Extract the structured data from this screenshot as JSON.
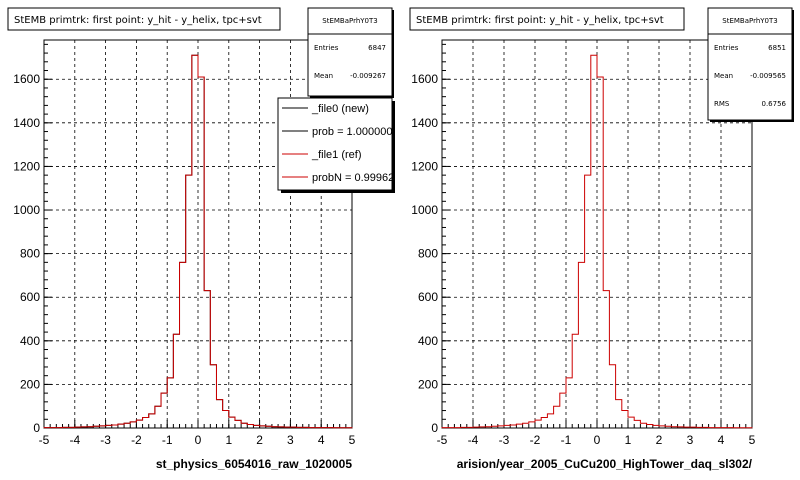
{
  "chart_data": [
    {
      "type": "line",
      "title": "StEMB primtrk: first point: y_hit - y_helix, tpc+svt",
      "xlabel": "st_physics_6054016_raw_1020005",
      "ylabel": "",
      "xlim": [
        -5,
        5
      ],
      "ylim": [
        0,
        1780
      ],
      "x_ticks": [
        "-5",
        "-4",
        "-3",
        "-2",
        "-1",
        "0",
        "1",
        "2",
        "3",
        "4",
        "5"
      ],
      "y_ticks": [
        "0",
        "200",
        "400",
        "600",
        "800",
        "1000",
        "1200",
        "1400",
        "1600"
      ],
      "grid": true,
      "bin_width": 0.2,
      "stats": {
        "name": "StEMBaPrhY0T3",
        "rows": [
          {
            "label": "Entries",
            "value": "6847"
          },
          {
            "label": "Mean",
            "value": "-0.009267"
          }
        ]
      },
      "legend": {
        "position": "top-right",
        "entries": [
          {
            "label": "_file0 (new)",
            "color": "#000000"
          },
          {
            "label": "prob = 1.000000",
            "color": "#000000"
          },
          {
            "label": "_file1 (ref)",
            "color": "#cc0000"
          },
          {
            "label": "probN = 0.99962",
            "color": "#cc0000"
          }
        ]
      },
      "series": [
        {
          "color": "#000000",
          "x": [
            -4.9,
            -4.7,
            -4.5,
            -4.3,
            -4.1,
            -3.9,
            -3.7,
            -3.5,
            -3.3,
            -3.1,
            -2.9,
            -2.7,
            -2.5,
            -2.3,
            -2.1,
            -1.9,
            -1.7,
            -1.5,
            -1.3,
            -1.1,
            -0.9,
            -0.7,
            -0.5,
            -0.3,
            -0.1,
            0.1,
            0.3,
            0.5,
            0.7,
            0.9,
            1.1,
            1.3,
            1.5,
            1.7,
            1.9,
            2.1,
            2.3,
            2.5,
            2.7,
            2.9,
            3.1,
            3.3,
            3.5,
            3.7,
            3.9,
            4.1,
            4.3,
            4.5,
            4.7,
            4.9
          ],
          "values": [
            2,
            2,
            2,
            3,
            3,
            4,
            5,
            6,
            8,
            10,
            12,
            14,
            18,
            22,
            28,
            36,
            48,
            65,
            100,
            160,
            230,
            430,
            760,
            1160,
            1710,
            1610,
            630,
            290,
            130,
            80,
            50,
            35,
            22,
            16,
            12,
            10,
            8,
            6,
            5,
            4,
            4,
            3,
            3,
            2,
            2,
            2,
            2,
            1,
            1,
            1
          ]
        },
        {
          "color": "#cc0000",
          "x": [
            -4.9,
            -4.7,
            -4.5,
            -4.3,
            -4.1,
            -3.9,
            -3.7,
            -3.5,
            -3.3,
            -3.1,
            -2.9,
            -2.7,
            -2.5,
            -2.3,
            -2.1,
            -1.9,
            -1.7,
            -1.5,
            -1.3,
            -1.1,
            -0.9,
            -0.7,
            -0.5,
            -0.3,
            -0.1,
            0.1,
            0.3,
            0.5,
            0.7,
            0.9,
            1.1,
            1.3,
            1.5,
            1.7,
            1.9,
            2.1,
            2.3,
            2.5,
            2.7,
            2.9,
            3.1,
            3.3,
            3.5,
            3.7,
            3.9,
            4.1,
            4.3,
            4.5,
            4.7,
            4.9
          ],
          "values": [
            2,
            2,
            2,
            3,
            3,
            4,
            5,
            6,
            8,
            10,
            12,
            14,
            18,
            22,
            28,
            36,
            48,
            65,
            100,
            160,
            230,
            430,
            760,
            1160,
            1710,
            1610,
            630,
            290,
            130,
            80,
            50,
            35,
            22,
            16,
            12,
            10,
            8,
            6,
            5,
            4,
            4,
            3,
            3,
            2,
            2,
            2,
            2,
            1,
            1,
            1
          ]
        }
      ]
    },
    {
      "type": "line",
      "title": "StEMB primtrk: first point: y_hit - y_helix, tpc+svt",
      "xlabel": "arision/year_2005_CuCu200_HighTower_daq_sl302/",
      "ylabel": "",
      "xlim": [
        -5,
        5
      ],
      "ylim": [
        0,
        1780
      ],
      "x_ticks": [
        "-5",
        "-4",
        "-3",
        "-2",
        "-1",
        "0",
        "1",
        "2",
        "3",
        "4",
        "5"
      ],
      "y_ticks": [
        "0",
        "200",
        "400",
        "600",
        "800",
        "1000",
        "1200",
        "1400",
        "1600"
      ],
      "grid": true,
      "bin_width": 0.2,
      "stats": {
        "name": "StEMBaPrhY0T3",
        "rows": [
          {
            "label": "Entries",
            "value": "6851"
          },
          {
            "label": "Mean",
            "value": "-0.009565"
          },
          {
            "label": "RMS",
            "value": "0.6756"
          }
        ]
      },
      "legend": null,
      "series": [
        {
          "color": "#cc0000",
          "x": [
            -4.9,
            -4.7,
            -4.5,
            -4.3,
            -4.1,
            -3.9,
            -3.7,
            -3.5,
            -3.3,
            -3.1,
            -2.9,
            -2.7,
            -2.5,
            -2.3,
            -2.1,
            -1.9,
            -1.7,
            -1.5,
            -1.3,
            -1.1,
            -0.9,
            -0.7,
            -0.5,
            -0.3,
            -0.1,
            0.1,
            0.3,
            0.5,
            0.7,
            0.9,
            1.1,
            1.3,
            1.5,
            1.7,
            1.9,
            2.1,
            2.3,
            2.5,
            2.7,
            2.9,
            3.1,
            3.3,
            3.5,
            3.7,
            3.9,
            4.1,
            4.3,
            4.5,
            4.7,
            4.9
          ],
          "values": [
            2,
            2,
            2,
            3,
            3,
            4,
            5,
            6,
            8,
            10,
            12,
            14,
            18,
            22,
            28,
            36,
            48,
            65,
            100,
            160,
            230,
            430,
            760,
            1160,
            1710,
            1610,
            630,
            290,
            130,
            80,
            50,
            35,
            22,
            16,
            12,
            10,
            8,
            6,
            5,
            4,
            4,
            3,
            3,
            2,
            2,
            2,
            2,
            1,
            1,
            1
          ]
        }
      ]
    }
  ]
}
